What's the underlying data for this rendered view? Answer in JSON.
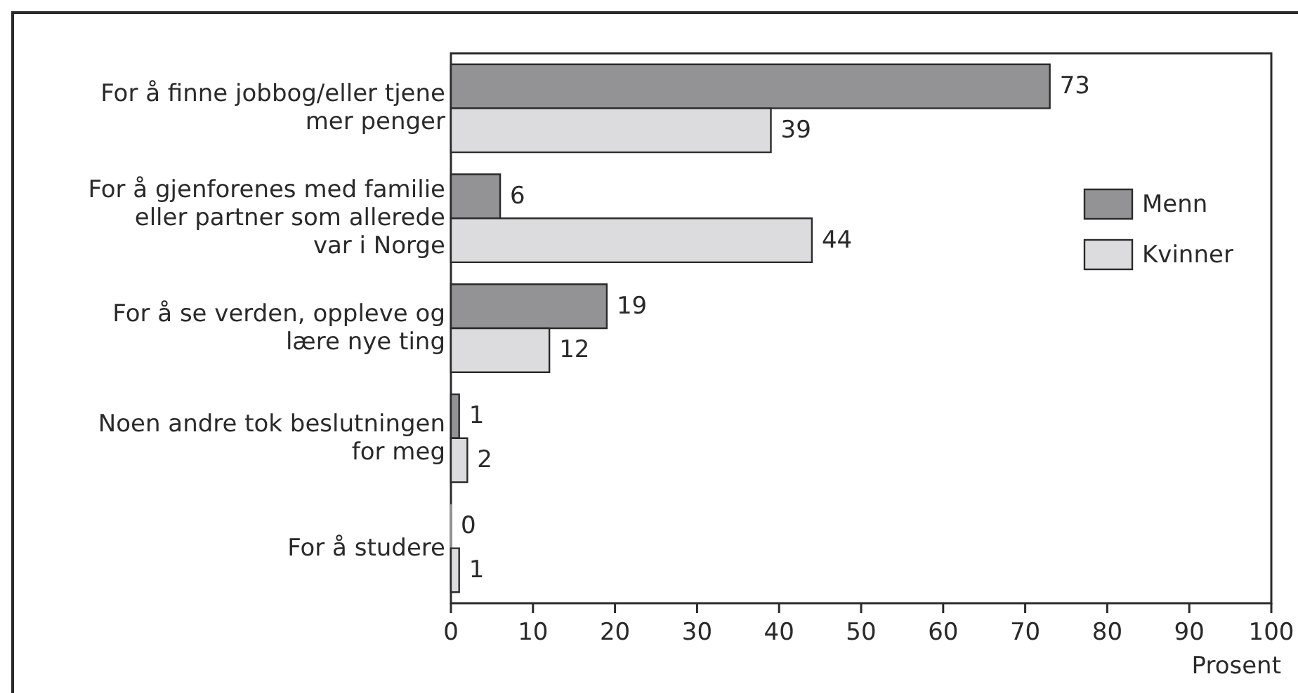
{
  "chart_data": {
    "type": "bar",
    "orientation": "horizontal",
    "categories": [
      "For å finne jobbog/eller tjene\nmer penger",
      "For å gjenforenes med familie\neller partner som allerede\nvar i Norge",
      "For å se verden, oppleve og\nlære nye ting",
      "Noen andre tok beslutningen\nfor meg",
      "For å studere"
    ],
    "series": [
      {
        "name": "Menn",
        "color": "#939396",
        "values": [
          73,
          6,
          19,
          1,
          0
        ]
      },
      {
        "name": "Kvinner",
        "color": "#dcdcde",
        "values": [
          39,
          44,
          12,
          2,
          1
        ]
      }
    ],
    "xlabel": "Prosent",
    "xlim": [
      0,
      100
    ],
    "xticks": [
      0,
      10,
      20,
      30,
      40,
      50,
      60,
      70,
      80,
      90,
      100
    ],
    "data_labels": true,
    "legend": "right",
    "grid": false
  }
}
